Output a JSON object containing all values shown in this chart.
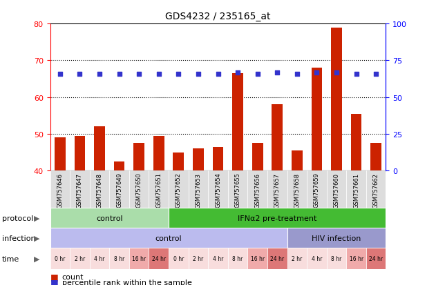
{
  "title": "GDS4232 / 235165_at",
  "samples": [
    "GSM757646",
    "GSM757647",
    "GSM757648",
    "GSM757649",
    "GSM757650",
    "GSM757651",
    "GSM757652",
    "GSM757653",
    "GSM757654",
    "GSM757655",
    "GSM757656",
    "GSM757657",
    "GSM757658",
    "GSM757659",
    "GSM757660",
    "GSM757661",
    "GSM757662"
  ],
  "counts": [
    49,
    49.5,
    52,
    42.5,
    47.5,
    49.5,
    45,
    46,
    46.5,
    66.5,
    47.5,
    58,
    45.5,
    68,
    79,
    55.5,
    47.5
  ],
  "percentile_ranks": [
    66,
    66,
    66,
    66,
    66,
    66,
    66,
    66,
    66,
    67,
    66,
    67,
    66,
    67,
    67,
    66,
    66
  ],
  "ylim_left": [
    40,
    80
  ],
  "ylim_right": [
    0,
    100
  ],
  "yticks_left": [
    40,
    50,
    60,
    70,
    80
  ],
  "yticks_right": [
    0,
    25,
    50,
    75,
    100
  ],
  "bar_color": "#cc2200",
  "dot_color": "#3333cc",
  "grid_color": "#000000",
  "bg_color": "#f0f0f0",
  "chart_bg": "#ffffff",
  "protocol_labels": [
    {
      "label": "control",
      "start": 0,
      "end": 6,
      "color": "#aaddaa"
    },
    {
      "label": "IFNα2 pre-treatment",
      "start": 6,
      "end": 17,
      "color": "#44bb33"
    }
  ],
  "infection_labels": [
    {
      "label": "control",
      "start": 0,
      "end": 12,
      "color": "#bbbbee"
    },
    {
      "label": "HIV infection",
      "start": 12,
      "end": 17,
      "color": "#9999cc"
    }
  ],
  "time_labels": [
    "0 hr",
    "2 hr",
    "4 hr",
    "8 hr",
    "16 hr",
    "24 hr",
    "0 hr",
    "2 hr",
    "4 hr",
    "8 hr",
    "16 hr",
    "24 hr",
    "2 hr",
    "4 hr",
    "8 hr",
    "16 hr",
    "24 hr"
  ],
  "time_colors": [
    "#f8dddd",
    "#f8dddd",
    "#f8dddd",
    "#f8dddd",
    "#f0aaaa",
    "#dd7777",
    "#f8dddd",
    "#f8dddd",
    "#f8dddd",
    "#f8dddd",
    "#f0aaaa",
    "#dd7777",
    "#f8dddd",
    "#f8dddd",
    "#f8dddd",
    "#f0aaaa",
    "#dd7777"
  ],
  "legend_count_color": "#cc2200",
  "legend_dot_color": "#3333cc",
  "arrow_color": "#666666",
  "xtick_bg": "#dddddd"
}
